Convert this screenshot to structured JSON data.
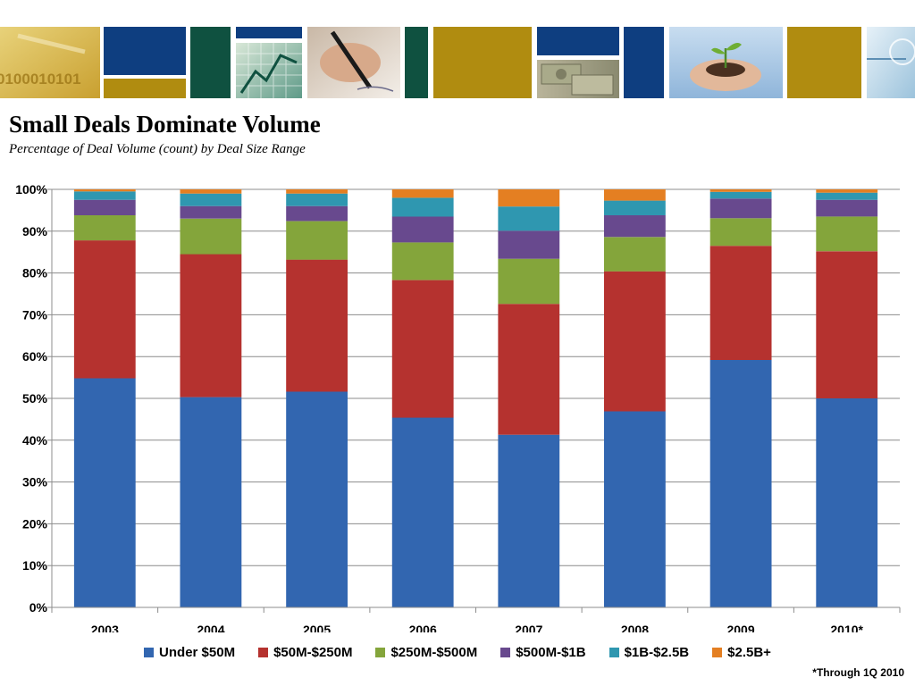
{
  "page": {
    "footnote": "*Through 1Q 2010"
  },
  "banner": {
    "photos": [
      "binary-code-photo",
      "stock-chart-photo",
      "signing-pen-photo",
      "dollar-bills-photo",
      "seedling-hands-photo",
      "technology-photo"
    ],
    "binary_text": "0100010101",
    "colors": {
      "navy": "#0E3E80",
      "green": "#0F5140",
      "gold": "#B08C10"
    }
  },
  "chart_data": {
    "type": "bar",
    "stacked": true,
    "title": "Small Deals Dominate Volume",
    "subtitle": "Percentage of Deal Volume (count) by Deal Size Range",
    "categories": [
      "2003",
      "2004",
      "2005",
      "2006",
      "2007",
      "2008",
      "2009",
      "2010*"
    ],
    "yticks": [
      "0%",
      "10%",
      "20%",
      "30%",
      "40%",
      "50%",
      "60%",
      "70%",
      "80%",
      "90%",
      "100%"
    ],
    "ylim": [
      0,
      100
    ],
    "grid": true,
    "legend_position": "bottom",
    "series": [
      {
        "name": "Under $50M",
        "color": "#3266B0",
        "values": [
          54.8,
          50.3,
          51.6,
          45.4,
          41.3,
          46.9,
          59.2,
          50.0
        ]
      },
      {
        "name": "$50M-$250M",
        "color": "#B5322F",
        "values": [
          33.0,
          34.2,
          31.6,
          32.9,
          31.3,
          33.5,
          27.3,
          35.2
        ]
      },
      {
        "name": "$250M-$500M",
        "color": "#84A53B",
        "values": [
          6.0,
          8.5,
          9.2,
          9.0,
          10.8,
          8.2,
          6.6,
          8.3
        ]
      },
      {
        "name": "$500M-$1B",
        "color": "#68498E",
        "values": [
          3.7,
          3.0,
          3.6,
          6.2,
          6.7,
          5.2,
          4.7,
          4.0
        ]
      },
      {
        "name": "$1B-$2.5B",
        "color": "#2F97B0",
        "values": [
          2.0,
          3.0,
          3.0,
          4.5,
          5.8,
          3.5,
          1.6,
          1.7
        ]
      },
      {
        "name": "$2.5B+",
        "color": "#E47F22",
        "values": [
          0.5,
          1.0,
          1.0,
          2.0,
          4.1,
          2.7,
          0.6,
          0.8
        ]
      }
    ]
  }
}
